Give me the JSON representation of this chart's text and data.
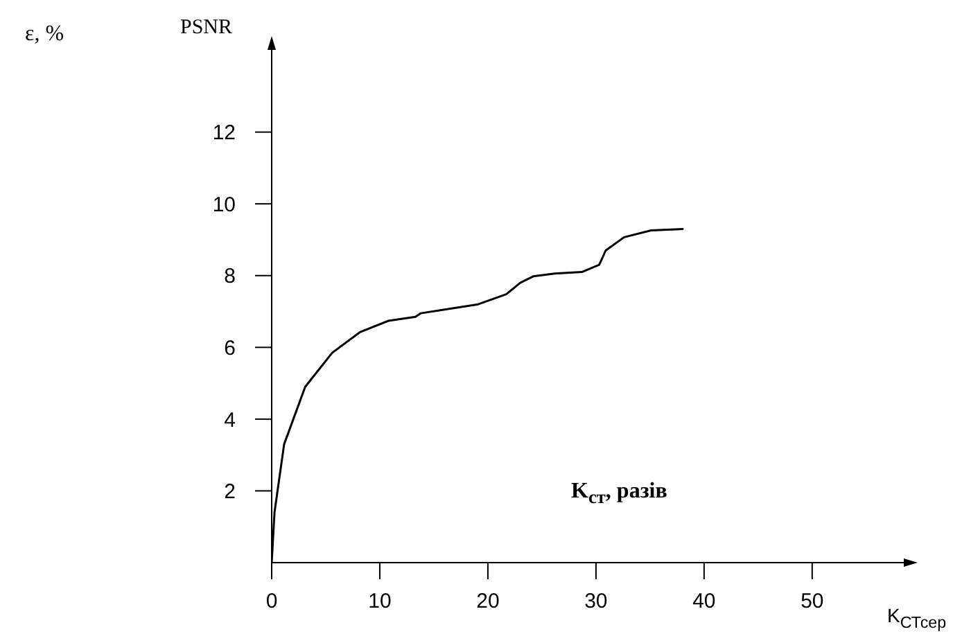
{
  "chart_data": {
    "type": "line",
    "xlabel": "K$_{СТсер}$",
    "ylabel": "PSNR",
    "annotations": [
      "ε, %",
      "K$_{ст}$, разів"
    ],
    "x": [
      0,
      0.26,
      1.15,
      3.1,
      5.6,
      8.2,
      10.8,
      13.3,
      13.8,
      15.9,
      19.1,
      21.7,
      23,
      24.2,
      26.2,
      28.7,
      30.3,
      30.9,
      32.6,
      35.1,
      38.1
    ],
    "series": [
      {
        "color": "#000000",
        "values": [
          0,
          1.4,
          3.3,
          4.9,
          5.85,
          6.43,
          6.74,
          6.85,
          6.95,
          7.05,
          7.2,
          7.48,
          7.8,
          7.98,
          8.06,
          8.1,
          8.3,
          8.7,
          9.07,
          9.26,
          9.3
        ]
      }
    ],
    "xlim": [
      0,
      59.5
    ],
    "xticks": [
      0,
      10,
      20,
      30,
      40,
      50
    ],
    "ylim": [
      0,
      14.6
    ],
    "yticks": [
      2,
      4,
      6,
      8,
      10,
      12
    ],
    "grid": false,
    "legend": false,
    "marker": "none",
    "line_style": "solid"
  }
}
